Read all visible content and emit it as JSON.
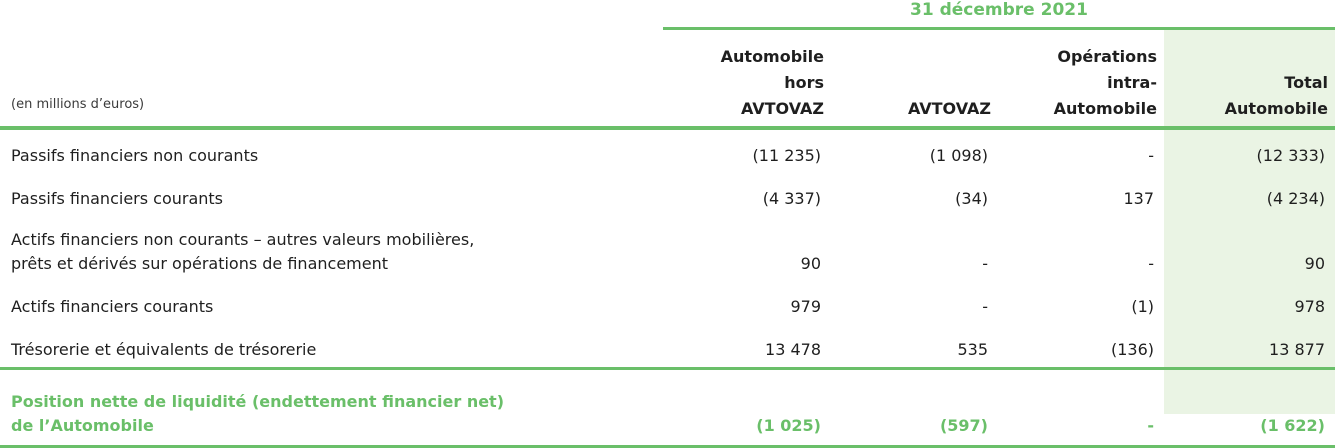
{
  "header": {
    "date": "31 décembre 2021",
    "label_col": "(en millions d’euros)",
    "columns": [
      [
        "Automobile",
        "hors",
        "AVTOVAZ"
      ],
      [
        "AVTOVAZ"
      ],
      [
        "Opérations",
        "intra-",
        "Automobile"
      ],
      [
        "Total",
        "Automobile"
      ]
    ]
  },
  "rows": [
    {
      "label": [
        "Passifs financiers non courants"
      ],
      "values": [
        "(11 235)",
        "(1 098)",
        "-",
        "(12 333)"
      ]
    },
    {
      "label": [
        "Passifs financiers courants"
      ],
      "values": [
        "(4 337)",
        "(34)",
        "137",
        "(4 234)"
      ]
    },
    {
      "label": [
        "Actifs financiers non courants – autres valeurs mobilières,",
        "prêts et dérivés sur opérations de financement"
      ],
      "values": [
        "90",
        "-",
        "-",
        "90"
      ]
    },
    {
      "label": [
        "Actifs financiers courants"
      ],
      "values": [
        "979",
        "-",
        "(1)",
        "978"
      ]
    },
    {
      "label": [
        "Trésorerie et équivalents de trésorerie"
      ],
      "values": [
        "13 478",
        "535",
        "(136)",
        "13 877"
      ]
    }
  ],
  "total": {
    "label": [
      "Position nette de liquidité (endettement financier net)",
      "de l’Automobile"
    ],
    "values": [
      "(1 025)",
      "(597)",
      "-",
      "(1 622)"
    ]
  },
  "colors": {
    "accent": "#6abf69",
    "total_bg": "#eaf4e4",
    "text": "#1f1f1f"
  }
}
